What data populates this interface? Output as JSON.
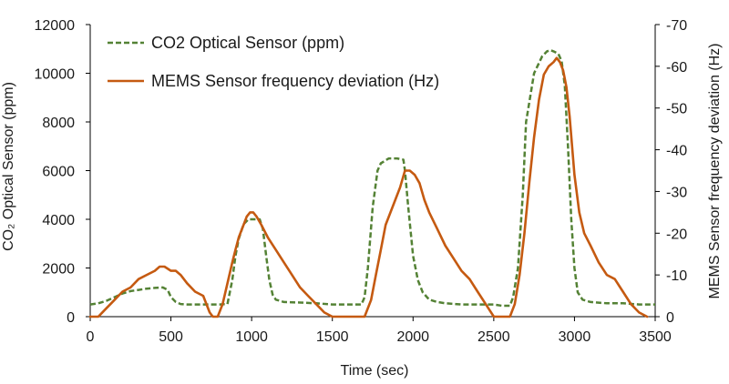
{
  "chart_data": {
    "type": "line",
    "title": "",
    "xlabel": "Time (sec)",
    "ylabel_left": "CO₂ Optical Sensor (ppm)",
    "ylabel_right": "MEMS Sensor frequency deviation (Hz)",
    "xlim": [
      0,
      3500
    ],
    "x_ticks": [
      0,
      500,
      1000,
      1500,
      2000,
      2500,
      3000,
      3500
    ],
    "x_tick_labels": [
      "0",
      "500",
      "1000",
      "1500",
      "2000",
      "2500",
      "3000",
      "3500"
    ],
    "ylim_left": [
      0,
      12000
    ],
    "y_left_ticks": [
      0,
      2000,
      4000,
      6000,
      8000,
      10000,
      12000
    ],
    "y_left_tick_labels": [
      "0",
      "2000",
      "4000",
      "6000",
      "8000",
      "10000",
      "12000"
    ],
    "ylim_right": [
      0,
      -70
    ],
    "y_right_ticks": [
      0,
      -10,
      -20,
      -30,
      -40,
      -50,
      -60,
      -70
    ],
    "y_right_tick_labels": [
      "0",
      "-10",
      "-20",
      "-30",
      "-40",
      "-50",
      "-60",
      "-70"
    ],
    "grid": false,
    "legend_position": "top-left",
    "series": [
      {
        "name": "CO2 Optical Sensor (ppm)",
        "axis": "left",
        "color": "#548235",
        "style": "dashed",
        "x": [
          0,
          50,
          100,
          150,
          200,
          250,
          300,
          350,
          400,
          450,
          480,
          500,
          530,
          560,
          600,
          650,
          700,
          750,
          800,
          850,
          880,
          900,
          920,
          950,
          980,
          1000,
          1020,
          1050,
          1070,
          1090,
          1110,
          1130,
          1150,
          1200,
          1300,
          1400,
          1500,
          1600,
          1650,
          1680,
          1700,
          1720,
          1750,
          1780,
          1800,
          1850,
          1900,
          1940,
          1950,
          1970,
          2000,
          2030,
          2060,
          2100,
          2150,
          2200,
          2300,
          2400,
          2500,
          2550,
          2600,
          2620,
          2650,
          2680,
          2700,
          2750,
          2800,
          2830,
          2850,
          2870,
          2900,
          2920,
          2940,
          2960,
          2980,
          3000,
          3020,
          3050,
          3100,
          3200,
          3300,
          3400,
          3500
        ],
        "y": [
          500,
          550,
          650,
          800,
          950,
          1050,
          1100,
          1150,
          1180,
          1200,
          1100,
          800,
          600,
          520,
          500,
          500,
          500,
          500,
          500,
          520,
          1500,
          2500,
          3200,
          3800,
          4000,
          4000,
          4000,
          4000,
          3600,
          2500,
          1500,
          900,
          700,
          600,
          580,
          550,
          500,
          500,
          500,
          500,
          800,
          2000,
          4500,
          6000,
          6300,
          6500,
          6500,
          6450,
          6000,
          4500,
          2500,
          1500,
          1000,
          700,
          600,
          550,
          500,
          500,
          500,
          450,
          450,
          800,
          2000,
          5000,
          8000,
          10000,
          10700,
          10900,
          10950,
          10900,
          10800,
          10500,
          9500,
          7000,
          4000,
          2000,
          1000,
          700,
          600,
          550,
          550,
          500,
          500
        ]
      },
      {
        "name": "MEMS Sensor frequency deviation (Hz)",
        "axis": "right",
        "color": "#C55A11",
        "style": "solid",
        "x": [
          0,
          50,
          100,
          150,
          200,
          250,
          300,
          350,
          400,
          430,
          460,
          500,
          530,
          560,
          600,
          650,
          700,
          740,
          760,
          790,
          820,
          850,
          880,
          900,
          920,
          950,
          970,
          990,
          1010,
          1030,
          1060,
          1100,
          1150,
          1200,
          1250,
          1300,
          1350,
          1400,
          1450,
          1500,
          1560,
          1600,
          1650,
          1700,
          1740,
          1770,
          1800,
          1830,
          1860,
          1890,
          1920,
          1950,
          1980,
          2010,
          2040,
          2070,
          2100,
          2150,
          2200,
          2250,
          2300,
          2350,
          2400,
          2450,
          2500,
          2550,
          2600,
          2630,
          2660,
          2690,
          2720,
          2750,
          2780,
          2810,
          2840,
          2870,
          2890,
          2910,
          2930,
          2950,
          2970,
          3000,
          3030,
          3060,
          3100,
          3150,
          3200,
          3250,
          3300,
          3350,
          3400,
          3450
        ],
        "y": [
          0,
          0,
          -2,
          -4,
          -6,
          -7,
          -9,
          -10,
          -11,
          -12,
          -12,
          -11,
          -11,
          -10,
          -8,
          -6,
          -5,
          -1,
          0,
          0,
          -3,
          -8,
          -13,
          -16,
          -19,
          -22,
          -24,
          -25,
          -25,
          -24,
          -22,
          -19,
          -16,
          -13,
          -10,
          -7,
          -5,
          -3,
          -1,
          0,
          0,
          0,
          0,
          0,
          -4,
          -10,
          -16,
          -22,
          -25,
          -28,
          -31,
          -35,
          -35,
          -34,
          -32,
          -28,
          -25,
          -21,
          -17,
          -14,
          -11,
          -9,
          -6,
          -3,
          0,
          0,
          0,
          -3,
          -10,
          -20,
          -32,
          -43,
          -52,
          -58,
          -60,
          -61,
          -62,
          -61,
          -59,
          -55,
          -48,
          -34,
          -25,
          -20,
          -17,
          -13,
          -10,
          -9,
          -6,
          -3,
          -1,
          0
        ]
      }
    ],
    "legend": [
      {
        "label": "CO2 Optical Sensor (ppm)",
        "style": "dashed",
        "color": "#548235"
      },
      {
        "label": "MEMS Sensor frequency deviation (Hz)",
        "style": "solid",
        "color": "#C55A11"
      }
    ]
  }
}
